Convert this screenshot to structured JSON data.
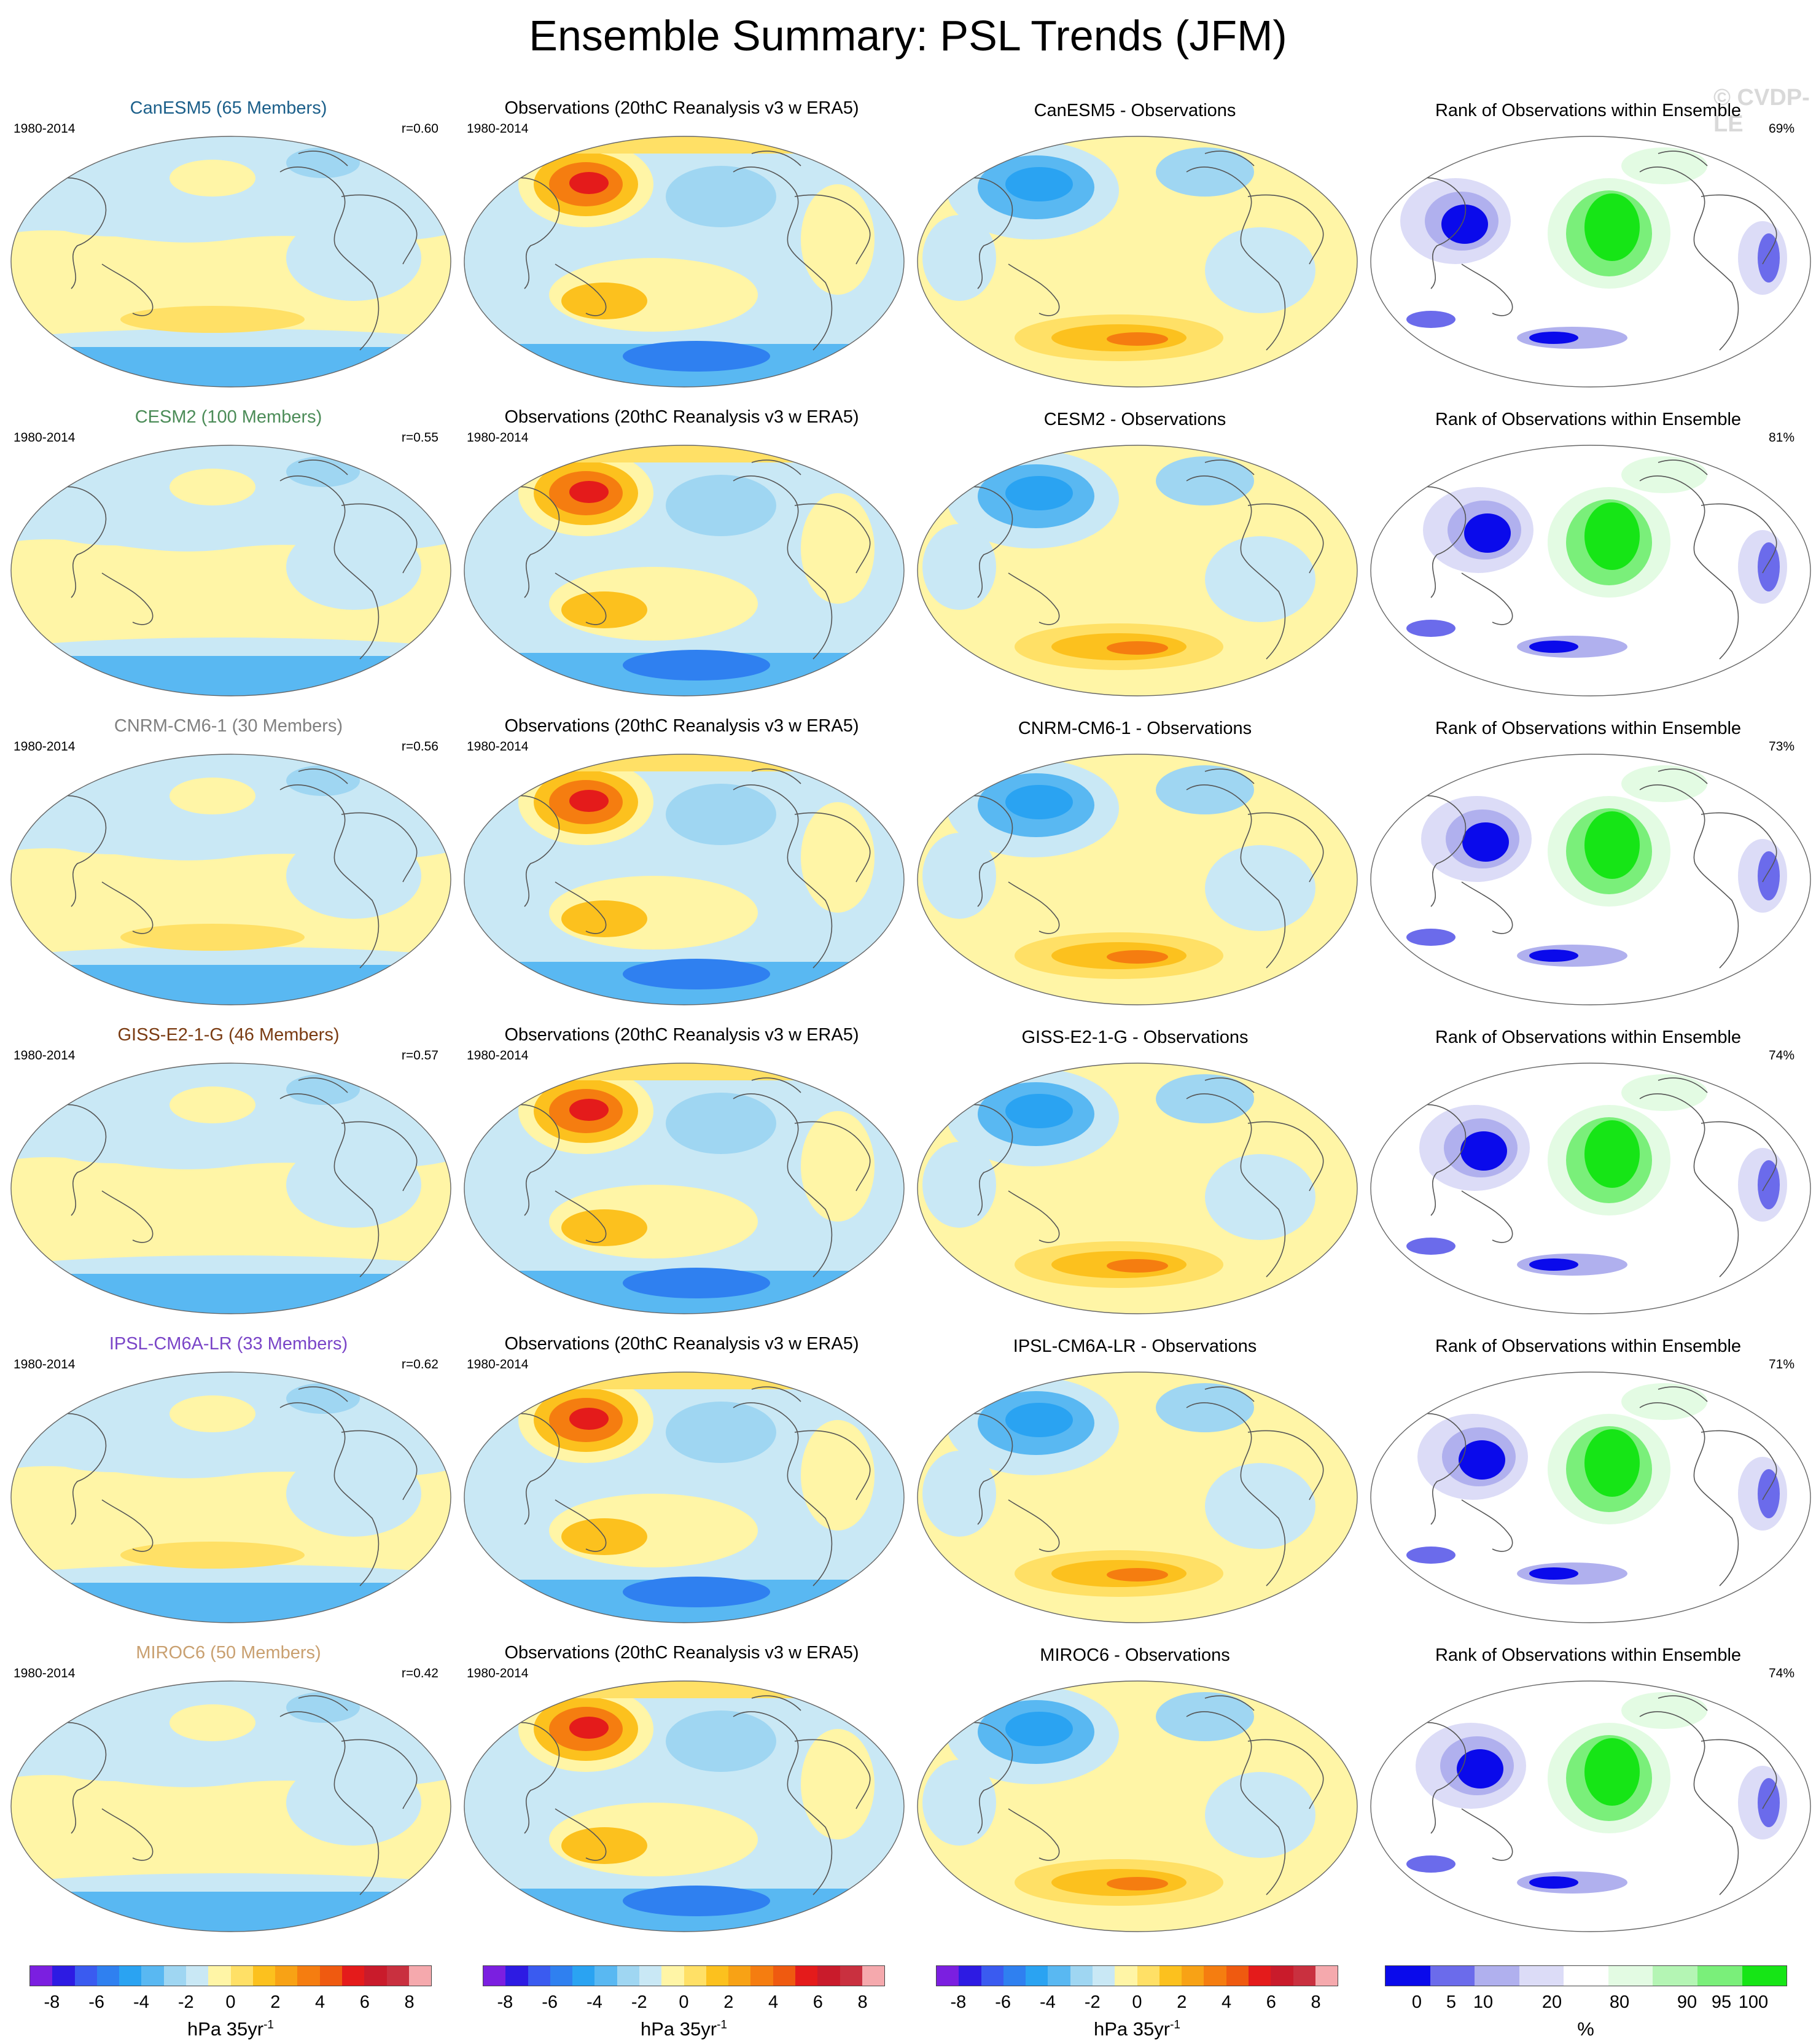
{
  "title": "Ensemble Summary: PSL Trends (JFM)",
  "watermark": "© CVDP-LE",
  "colors": {
    "trend_scale": [
      "#7b1fe0",
      "#2d1be3",
      "#3a5bf0",
      "#2f80f0",
      "#2aa3f2",
      "#59b8f2",
      "#9fd6f2",
      "#c9e8f5",
      "#fff5a6",
      "#ffe066",
      "#fcc11e",
      "#f8a215",
      "#f57d10",
      "#ef5a10",
      "#e41b1b",
      "#c91b2b",
      "#c9303f",
      "#f5a9ad"
    ],
    "rank_scale": [
      "#0a0aeb",
      "#6b6beb",
      "#b0b0ee",
      "#dcdcf7",
      "#ffffff",
      "#e3fbe3",
      "#b4f5b4",
      "#7aef7a",
      "#16e516"
    ]
  },
  "rows": [
    {
      "model": {
        "title": "CanESM5 (65 Members)",
        "color": "#1b5f8a",
        "period": "1980-2014",
        "r": "r=0.60"
      },
      "obs": {
        "title": "Observations (20thC Reanalysis v3 w ERA5)",
        "period": "1980-2014"
      },
      "diff": {
        "title": "CanESM5 - Observations"
      },
      "rank": {
        "title": "Rank of Observations within Ensemble",
        "pct": "69%"
      }
    },
    {
      "model": {
        "title": "CESM2 (100 Members)",
        "color": "#4c8c58",
        "period": "1980-2014",
        "r": "r=0.55"
      },
      "obs": {
        "title": "Observations (20thC Reanalysis v3 w ERA5)",
        "period": "1980-2014"
      },
      "diff": {
        "title": "CESM2 - Observations"
      },
      "rank": {
        "title": "Rank of Observations within Ensemble",
        "pct": "81%"
      }
    },
    {
      "model": {
        "title": "CNRM-CM6-1 (30 Members)",
        "color": "#808080",
        "period": "1980-2014",
        "r": "r=0.56"
      },
      "obs": {
        "title": "Observations (20thC Reanalysis v3 w ERA5)",
        "period": "1980-2014"
      },
      "diff": {
        "title": "CNRM-CM6-1 - Observations"
      },
      "rank": {
        "title": "Rank of Observations within Ensemble",
        "pct": "73%"
      }
    },
    {
      "model": {
        "title": "GISS-E2-1-G (46 Members)",
        "color": "#7a3b12",
        "period": "1980-2014",
        "r": "r=0.57"
      },
      "obs": {
        "title": "Observations (20thC Reanalysis v3 w ERA5)",
        "period": "1980-2014"
      },
      "diff": {
        "title": "GISS-E2-1-G - Observations"
      },
      "rank": {
        "title": "Rank of Observations within Ensemble",
        "pct": "74%"
      }
    },
    {
      "model": {
        "title": "IPSL-CM6A-LR (33 Members)",
        "color": "#7a45c8",
        "period": "1980-2014",
        "r": "r=0.62"
      },
      "obs": {
        "title": "Observations (20thC Reanalysis v3 w ERA5)",
        "period": "1980-2014"
      },
      "diff": {
        "title": "IPSL-CM6A-LR - Observations"
      },
      "rank": {
        "title": "Rank of Observations within Ensemble",
        "pct": "71%"
      }
    },
    {
      "model": {
        "title": "MIROC6 (50 Members)",
        "color": "#c9a070",
        "period": "1980-2014",
        "r": "r=0.42"
      },
      "obs": {
        "title": "Observations (20thC Reanalysis v3 w ERA5)",
        "period": "1980-2014"
      },
      "diff": {
        "title": "MIROC6 - Observations"
      },
      "rank": {
        "title": "Rank of Observations within Ensemble",
        "pct": "74%"
      }
    }
  ],
  "legends": {
    "trend": {
      "ticks": [
        "-8",
        "-6",
        "-4",
        "-2",
        "0",
        "2",
        "4",
        "6",
        "8"
      ],
      "unit": "hPa 35yr",
      "unit_exp": "-1"
    },
    "rank": {
      "ticks": [
        "0",
        "5",
        "10",
        "20",
        "80",
        "90",
        "95",
        "100"
      ],
      "unit": "%"
    }
  }
}
